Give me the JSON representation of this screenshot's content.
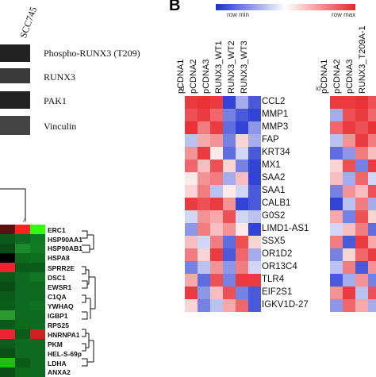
{
  "panelA": {
    "column_label": "SCC745",
    "blots": [
      "Phospho-RUNX3 (T209)",
      "RUNX3",
      "PAK1",
      "Vinculin"
    ],
    "dendro_marker": "A",
    "genes": [
      "ERC1",
      "HSP90AA1",
      "HSP90AB1",
      "HSPA8",
      "SPRR2E",
      "DSC1",
      "EWSR1",
      "C1QA",
      "YWHAQ",
      "IGBP1",
      "RPS25",
      "HNRNPA1",
      "PKM",
      "HEL-S-69p",
      "LDHA",
      "ANXA2"
    ]
  },
  "panelB": {
    "letter": "B",
    "legend_min": "row min",
    "legend_max": "row max",
    "id_label": "id",
    "columns": [
      "pCDNA1",
      "pCDNA2",
      "pCDNA3",
      "RUNX3_WT1",
      "RUNX3_WT2",
      "RUNX3_WT3"
    ],
    "columns2": [
      "pCDNA1",
      "pCDNA2",
      "pCDNA3",
      "RUNX3_T209A-1"
    ],
    "genes": [
      "CCL2",
      "MMP1",
      "MMP3",
      "FAP",
      "KRT34",
      "MX1",
      "SAA2",
      "SAA1",
      "CALB1",
      "G0S2",
      "LIMD1-AS1",
      "SSX5",
      "OR1D2",
      "OR13C4",
      "TLR4",
      "EIF2S1",
      "IGKV1D-27"
    ],
    "colors": {
      "high": "#e8262b",
      "mid": "#ffffff",
      "low": "#1b2fd0"
    }
  }
}
